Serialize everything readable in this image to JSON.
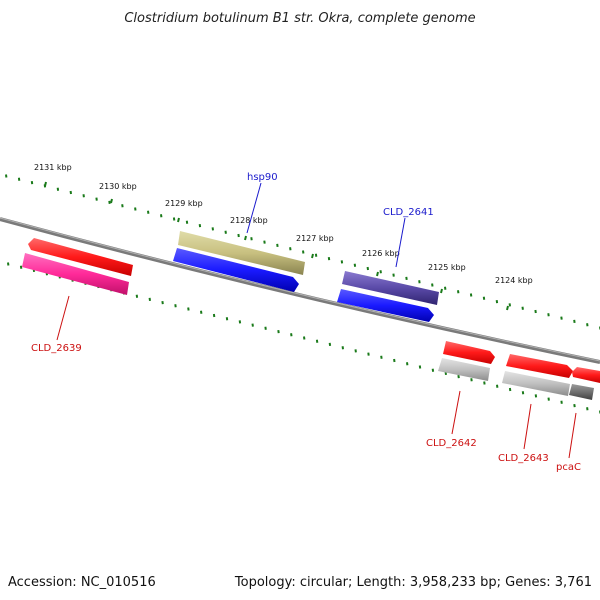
{
  "title": "Clostridium botulinum B1 str. Okra, complete genome",
  "footer": {
    "accession": "Accession: NC_010516",
    "topology": "Topology: circular; Length: 3,958,233 bp; Genes: 3,761"
  },
  "ticks": [
    "2131 kbp",
    "2130 kbp",
    "2129 kbp",
    "2128 kbp",
    "2127 kbp",
    "2126 kbp",
    "2125 kbp",
    "2124 kbp"
  ],
  "genes": [
    {
      "label": "hsp90",
      "color": "#1a1acc"
    },
    {
      "label": "CLD_2641",
      "color": "#1a1acc"
    },
    {
      "label": "CLD_2639",
      "color": "#cc1111"
    },
    {
      "label": "CLD_2642",
      "color": "#cc1111"
    },
    {
      "label": "CLD_2643",
      "color": "#cc1111"
    },
    {
      "label": "pcaC",
      "color": "#cc1111"
    }
  ],
  "colors": {
    "backbone": "#808080",
    "tick": "#1a7a1a",
    "forward_cds": "#ff2020",
    "reverse_cds_magenta": "#ff2a99",
    "olive_feature": "#c8c080",
    "blue_cds": "#1a1aff",
    "purple_feature": "#5a4aa8",
    "gray_feature": "#c0c0c0",
    "dark_gray_feature": "#707070"
  }
}
